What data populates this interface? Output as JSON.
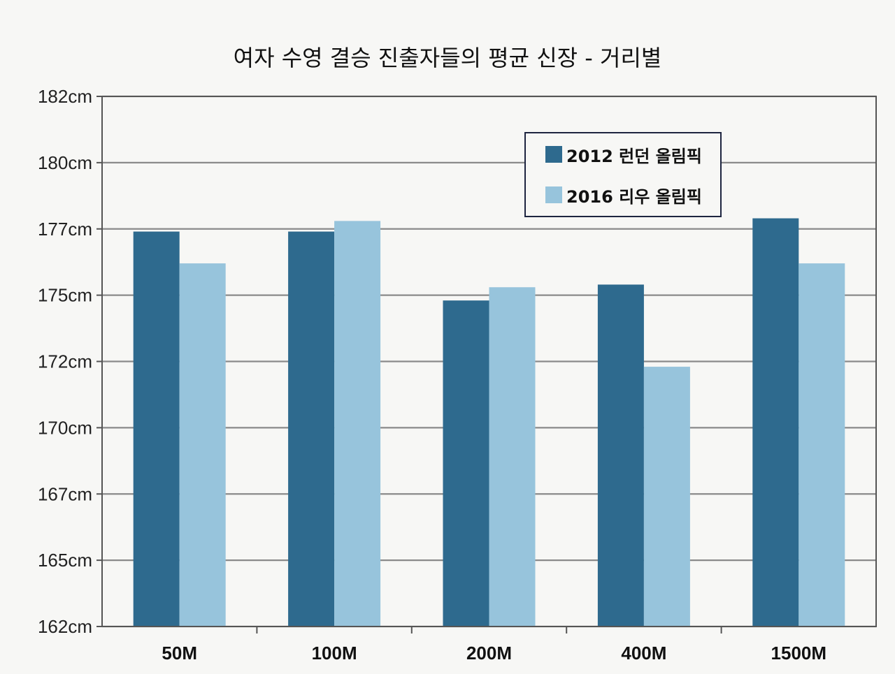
{
  "chart_data": {
    "type": "bar",
    "title": "여자 수영 결승 진출자들의 평균 신장 - 거리별",
    "categories": [
      "50M",
      "100M",
      "200M",
      "400M",
      "1500M"
    ],
    "series": [
      {
        "name": "2012 런던 올림픽",
        "color": "#2e6a8e",
        "values": [
          176.9,
          176.9,
          174.3,
          174.9,
          177.4
        ]
      },
      {
        "name": "2016 리우 올림픽",
        "color": "#97c4dc",
        "values": [
          175.7,
          177.3,
          174.8,
          171.8,
          175.7
        ]
      }
    ],
    "ytick_labels": [
      "162cm",
      "165cm",
      "167cm",
      "170cm",
      "172cm",
      "175cm",
      "177cm",
      "180cm",
      "182cm"
    ],
    "ylim": [
      162,
      182
    ],
    "xlabel": "",
    "ylabel": "",
    "grid": true,
    "legend_position": "top-right"
  }
}
